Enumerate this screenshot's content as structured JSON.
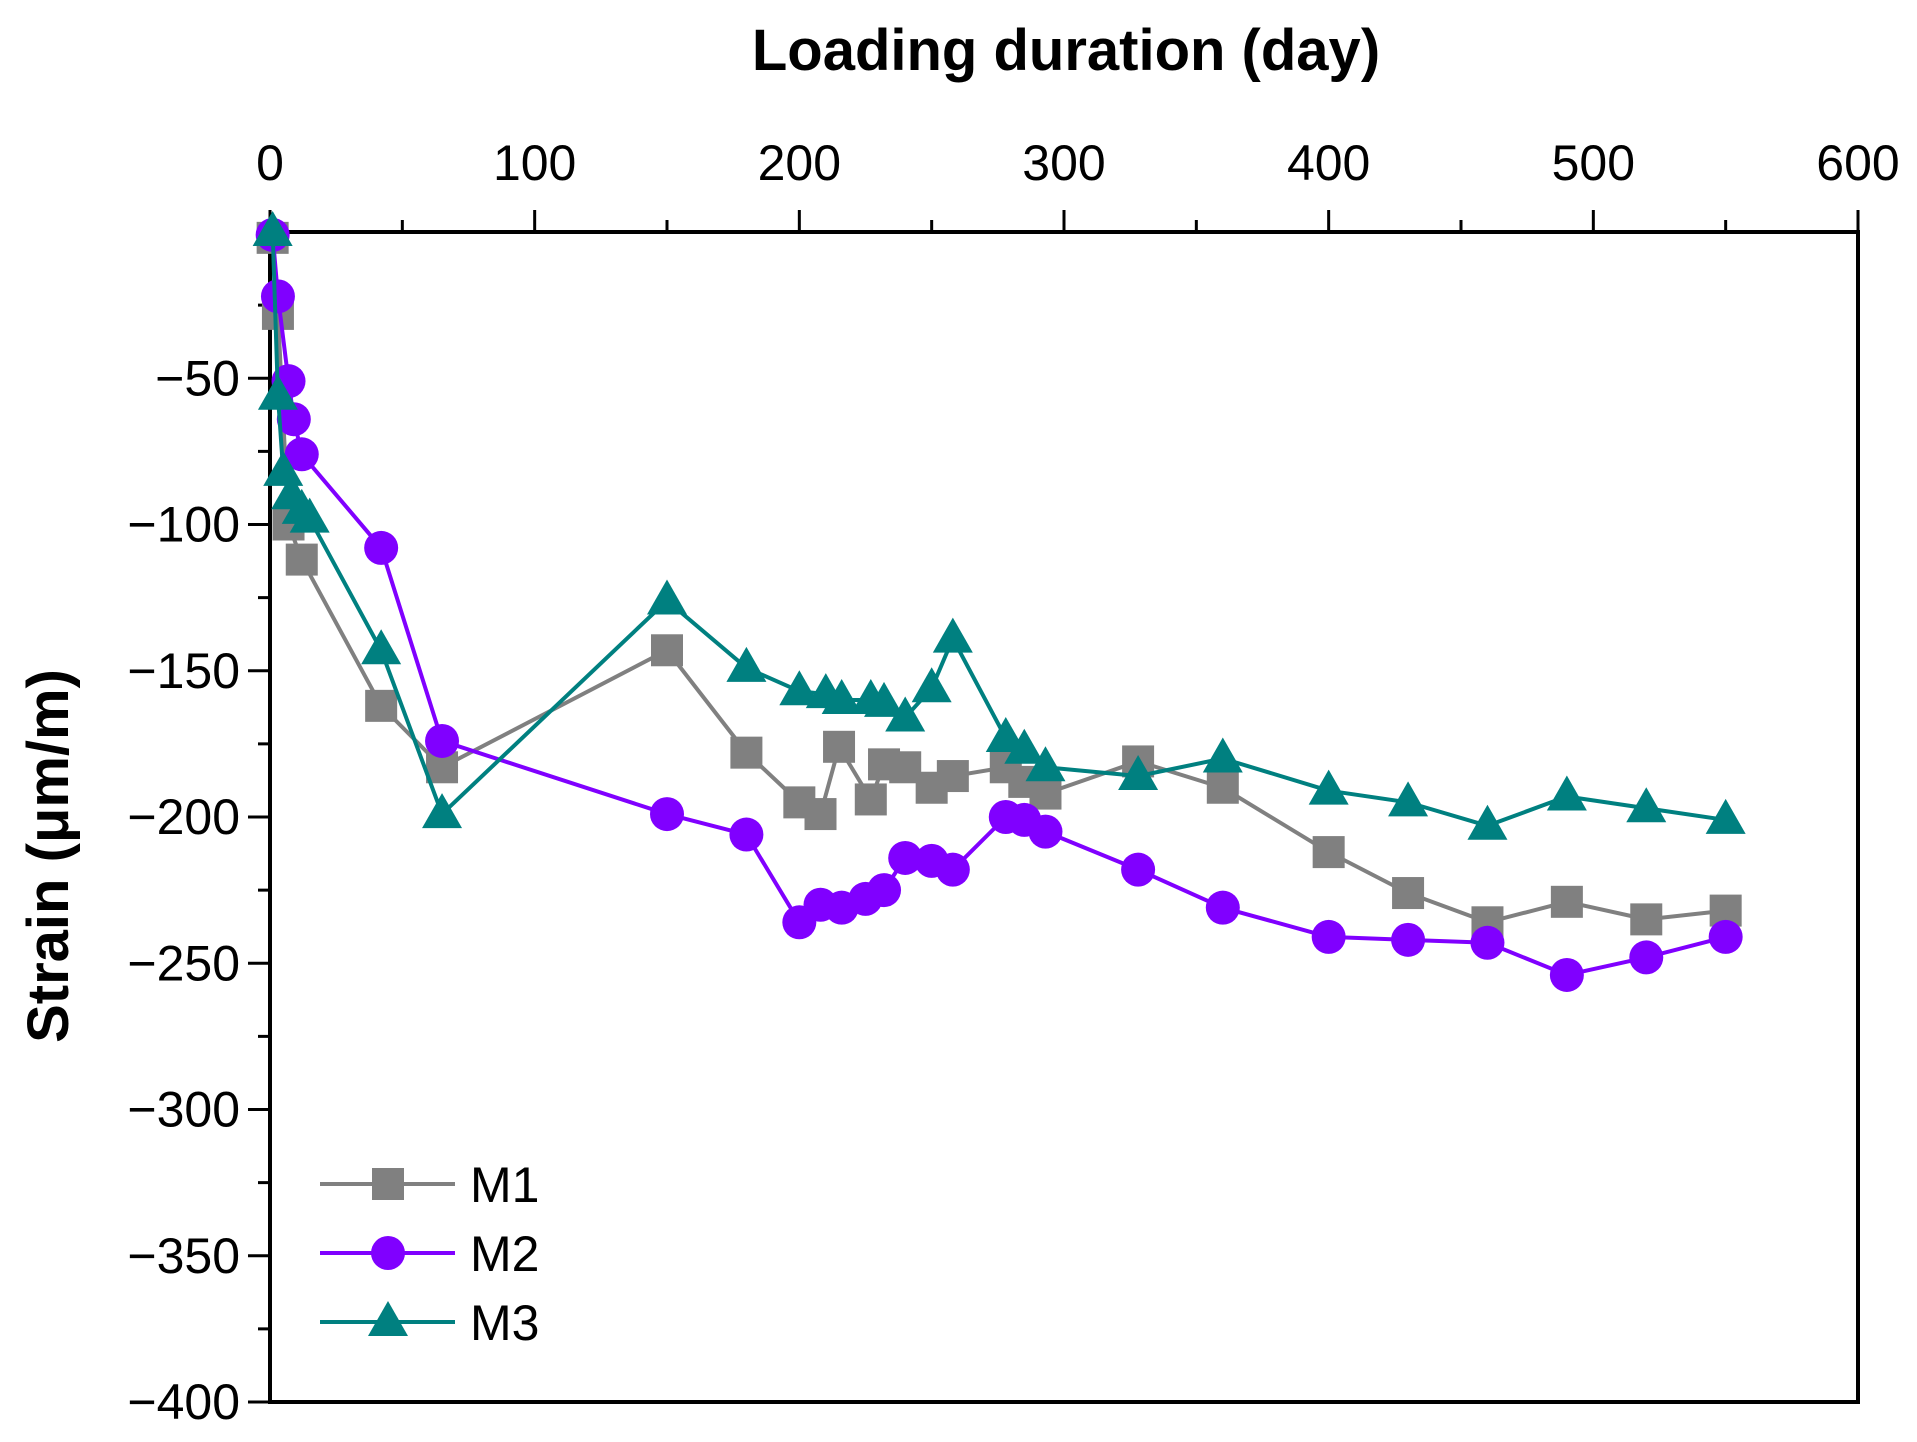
{
  "chart_data": {
    "type": "line",
    "title": "",
    "xlabel": "Loading duration (day)",
    "ylabel": "Strain (μm/m)",
    "xlim": [
      0,
      600
    ],
    "ylim": [
      -400,
      0
    ],
    "x_axis_position": "top",
    "x_ticks": [
      0,
      100,
      200,
      300,
      400,
      500,
      600
    ],
    "x_tick_labels": [
      "0",
      "100",
      "200",
      "300",
      "400",
      "500",
      "600"
    ],
    "y_ticks": [
      -50,
      -100,
      -150,
      -200,
      -250,
      -300,
      -350,
      -400
    ],
    "y_tick_labels": [
      "−50",
      "−100",
      "−150",
      "−200",
      "−250",
      "−300",
      "−350",
      "−400"
    ],
    "grid": false,
    "legend_position": "bottom-left",
    "series": [
      {
        "name": "M1",
        "color": "#808080",
        "marker": "square",
        "x": [
          1,
          3,
          7,
          12,
          42,
          65,
          150,
          180,
          200,
          208,
          215,
          227,
          232,
          240,
          250,
          258,
          278,
          285,
          293,
          328,
          360,
          400,
          430,
          460,
          490,
          520,
          550
        ],
        "y": [
          -2,
          -28,
          -100,
          -112,
          -162,
          -183,
          -143,
          -178,
          -195,
          -199,
          -176,
          -194,
          -182,
          -183,
          -190,
          -186,
          -183,
          -188,
          -192,
          -181,
          -190,
          -212,
          -226,
          -236,
          -229,
          -235,
          -232
        ]
      },
      {
        "name": "M2",
        "color": "#8000ff",
        "marker": "circle",
        "x": [
          1,
          3,
          7,
          9,
          12,
          42,
          65,
          150,
          180,
          200,
          208,
          216,
          225,
          232,
          240,
          250,
          258,
          278,
          285,
          293,
          328,
          360,
          400,
          430,
          460,
          490,
          520,
          550
        ],
        "y": [
          -1,
          -22,
          -51,
          -64,
          -76,
          -108,
          -174,
          -199,
          -206,
          -236,
          -230,
          -231,
          -228,
          -225,
          -214,
          -215,
          -218,
          -200,
          -201,
          -205,
          -218,
          -231,
          -241,
          -242,
          -243,
          -254,
          -248,
          -241
        ]
      },
      {
        "name": "M3",
        "color": "#008080",
        "marker": "triangle",
        "x": [
          1,
          3,
          5,
          8,
          12,
          15,
          42,
          65,
          150,
          180,
          200,
          210,
          216,
          227,
          232,
          240,
          250,
          258,
          278,
          285,
          293,
          328,
          360,
          400,
          430,
          460,
          490,
          520,
          550
        ],
        "y": [
          0,
          -56,
          -82,
          -90,
          -95,
          -98,
          -143,
          -199,
          -126,
          -149,
          -157,
          -158,
          -160,
          -160,
          -161,
          -166,
          -156,
          -139,
          -173,
          -177,
          -183,
          -186,
          -180,
          -191,
          -195,
          -203,
          -193,
          -197,
          -201
        ]
      }
    ]
  }
}
